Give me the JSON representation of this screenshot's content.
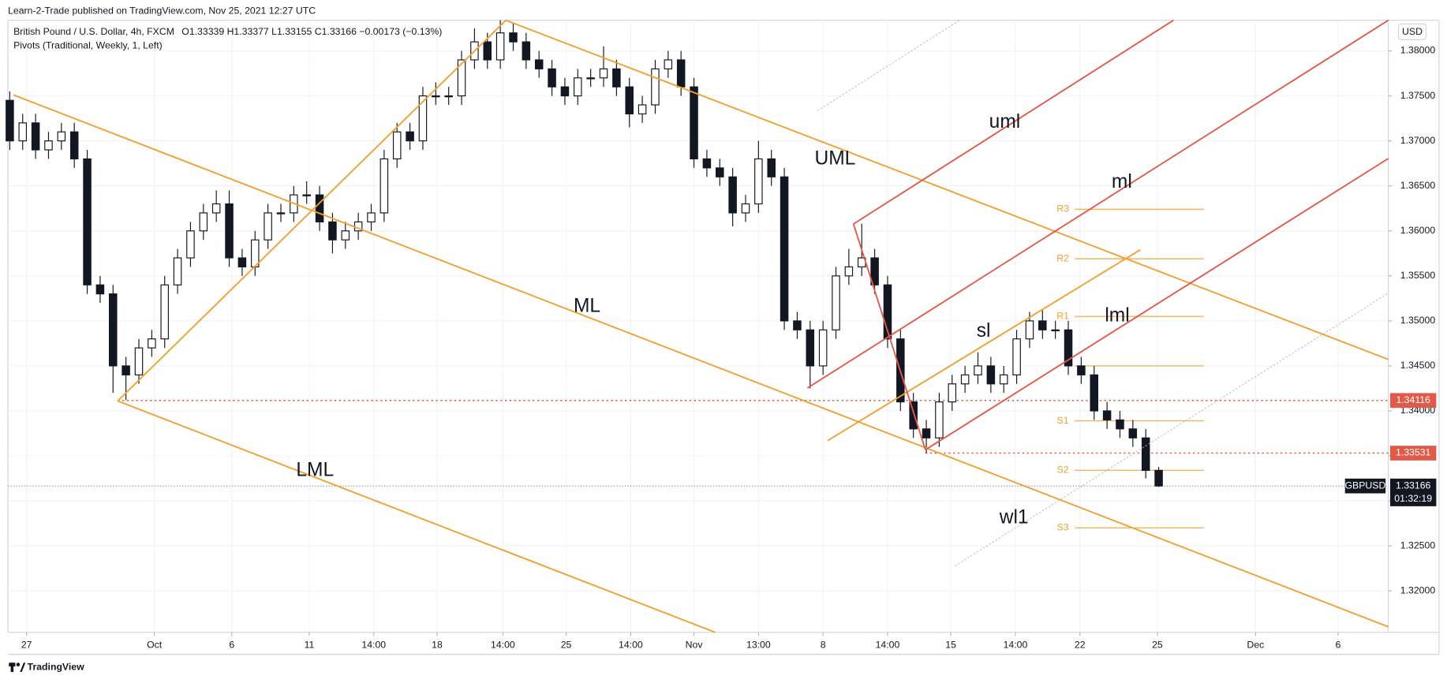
{
  "header": {
    "published": "Learn-2-Trade published on TradingView.com, Nov 25, 2021 12:27 UTC",
    "footer": "TradingView"
  },
  "chart_data": {
    "type": "candlestick",
    "title": "British Pound / U.S. Dollar, 4h, FXCM",
    "quote": "O1.33339  H1.33377  L1.33155  C1.33166  −0.00173 (−0.13%)",
    "indicator": "Pivots (Traditional, Weekly, 1, Left)",
    "currency": "USD",
    "symbol": "GBPUSD",
    "countdown": "01:32:19",
    "last_price": 1.33166,
    "price_lines": [
      1.34116,
      1.33531
    ],
    "annotations": [
      "UML",
      "ML",
      "LML",
      "uml",
      "ml",
      "lml",
      "sl",
      "wl1"
    ],
    "pivots": {
      "labels": [
        "R3",
        "R2",
        "R1",
        null,
        "S1",
        "S2",
        "S3"
      ],
      "values": [
        1.3624,
        1.3569,
        1.3505,
        1.345,
        1.3389,
        1.3334,
        1.327
      ]
    },
    "xlim": [
      -0.14,
      106.79
    ],
    "xticks": [
      {
        "value": 1.3,
        "label": "27"
      },
      {
        "value": 11.2,
        "label": "Oct"
      },
      {
        "value": 17.2,
        "label": "6"
      },
      {
        "value": 23.2,
        "label": "11"
      },
      {
        "value": 28.2,
        "label": "14:00"
      },
      {
        "value": 33.1,
        "label": "18"
      },
      {
        "value": 38.2,
        "label": "14:00"
      },
      {
        "value": 43.1,
        "label": "25"
      },
      {
        "value": 48.1,
        "label": "14:00"
      },
      {
        "value": 53,
        "label": "Nov"
      },
      {
        "value": 58,
        "label": "13:00"
      },
      {
        "value": 63,
        "label": "8"
      },
      {
        "value": 68,
        "label": "14:00"
      },
      {
        "value": 72.9,
        "label": "15"
      },
      {
        "value": 77.9,
        "label": "14:00"
      },
      {
        "value": 82.9,
        "label": "22"
      },
      {
        "value": 88.9,
        "label": "25"
      },
      {
        "value": 96.5,
        "label": "Dec"
      },
      {
        "value": 102.9,
        "label": "6"
      }
    ],
    "ylim": [
      1.3154,
      1.3834
    ],
    "yticks": [
      {
        "value": 1.32,
        "label": "1.32000"
      },
      {
        "value": 1.325,
        "label": "1.32500"
      },
      {
        "value": 1.33,
        "label": "1.33000"
      },
      {
        "value": 1.335,
        "label": "1.33500"
      },
      {
        "value": 1.34,
        "label": "1.34000"
      },
      {
        "value": 1.345,
        "label": "1.34500"
      },
      {
        "value": 1.35,
        "label": "1.35000"
      },
      {
        "value": 1.355,
        "label": "1.35500"
      },
      {
        "value": 1.36,
        "label": "1.36000"
      },
      {
        "value": 1.365,
        "label": "1.36500"
      },
      {
        "value": 1.37,
        "label": "1.37000"
      },
      {
        "value": 1.375,
        "label": "1.37500"
      },
      {
        "value": 1.38,
        "label": "1.38000"
      }
    ],
    "open": [
      1.3745,
      1.37,
      1.372,
      1.369,
      1.37,
      1.371,
      1.368,
      1.354,
      1.353,
      1.345,
      1.344,
      1.347,
      1.348,
      1.354,
      1.357,
      1.36,
      1.362,
      1.363,
      1.357,
      1.356,
      1.359,
      1.362,
      1.362,
      1.364,
      1.364,
      1.361,
      1.359,
      1.36,
      1.361,
      1.362,
      1.368,
      1.371,
      1.37,
      1.375,
      1.375,
      1.375,
      1.379,
      1.381,
      1.379,
      1.382,
      1.381,
      1.379,
      1.378,
      1.376,
      1.375,
      1.377,
      1.377,
      1.378,
      1.376,
      1.373,
      1.374,
      1.378,
      1.379,
      1.376,
      1.368,
      1.367,
      1.366,
      1.362,
      1.363,
      1.368,
      1.366,
      1.35,
      1.349,
      1.345,
      1.349,
      1.355,
      1.356,
      1.357,
      1.354,
      1.348,
      1.341,
      1.338,
      1.337,
      1.341,
      1.343,
      1.344,
      1.345,
      1.343,
      1.344,
      1.348,
      1.35,
      1.349,
      1.349,
      1.345,
      1.344,
      1.34,
      1.339,
      1.338,
      1.337,
      1.33339
    ],
    "high": [
      1.3755,
      1.373,
      1.373,
      1.371,
      1.372,
      1.372,
      1.369,
      1.355,
      1.354,
      1.346,
      1.348,
      1.349,
      1.355,
      1.358,
      1.361,
      1.363,
      1.3645,
      1.3645,
      1.358,
      1.36,
      1.363,
      1.363,
      1.365,
      1.3655,
      1.365,
      1.362,
      1.361,
      1.362,
      1.363,
      1.369,
      1.372,
      1.372,
      1.376,
      1.3765,
      1.376,
      1.38,
      1.3825,
      1.382,
      1.3834,
      1.383,
      1.382,
      1.38,
      1.379,
      1.377,
      1.378,
      1.378,
      1.3805,
      1.379,
      1.377,
      1.375,
      1.379,
      1.38,
      1.38,
      1.377,
      1.369,
      1.368,
      1.367,
      1.364,
      1.37,
      1.369,
      1.367,
      1.351,
      1.35,
      1.35,
      1.356,
      1.358,
      1.3608,
      1.358,
      1.355,
      1.349,
      1.342,
      1.339,
      1.342,
      1.344,
      1.345,
      1.3465,
      1.346,
      1.345,
      1.349,
      1.351,
      1.3512,
      1.35,
      1.35,
      1.346,
      1.345,
      1.341,
      1.34,
      1.339,
      1.338,
      1.33377
    ],
    "low": [
      1.369,
      1.369,
      1.368,
      1.368,
      1.369,
      1.367,
      1.353,
      1.352,
      1.342,
      1.3412,
      1.343,
      1.346,
      1.347,
      1.353,
      1.356,
      1.359,
      1.361,
      1.356,
      1.355,
      1.355,
      1.358,
      1.361,
      1.361,
      1.363,
      1.36,
      1.3575,
      1.358,
      1.359,
      1.36,
      1.361,
      1.367,
      1.369,
      1.369,
      1.374,
      1.374,
      1.374,
      1.378,
      1.378,
      1.378,
      1.38,
      1.378,
      1.377,
      1.375,
      1.374,
      1.374,
      1.376,
      1.376,
      1.375,
      1.3715,
      1.372,
      1.373,
      1.377,
      1.375,
      1.367,
      1.366,
      1.365,
      1.3605,
      1.361,
      1.362,
      1.365,
      1.349,
      1.348,
      1.3425,
      1.344,
      1.348,
      1.354,
      1.355,
      1.353,
      1.347,
      1.34,
      1.337,
      1.3353,
      1.336,
      1.34,
      1.342,
      1.343,
      1.342,
      1.342,
      1.343,
      1.347,
      1.348,
      1.348,
      1.344,
      1.343,
      1.339,
      1.338,
      1.337,
      1.336,
      1.3325,
      1.33155
    ],
    "close": [
      1.37,
      1.372,
      1.369,
      1.37,
      1.371,
      1.368,
      1.354,
      1.353,
      1.345,
      1.344,
      1.347,
      1.348,
      1.354,
      1.357,
      1.36,
      1.362,
      1.363,
      1.357,
      1.356,
      1.359,
      1.362,
      1.362,
      1.364,
      1.364,
      1.361,
      1.359,
      1.36,
      1.361,
      1.362,
      1.368,
      1.371,
      1.37,
      1.375,
      1.375,
      1.375,
      1.379,
      1.381,
      1.379,
      1.382,
      1.381,
      1.379,
      1.378,
      1.376,
      1.375,
      1.377,
      1.377,
      1.378,
      1.376,
      1.373,
      1.374,
      1.378,
      1.379,
      1.376,
      1.368,
      1.367,
      1.366,
      1.362,
      1.363,
      1.368,
      1.366,
      1.35,
      1.349,
      1.345,
      1.349,
      1.355,
      1.356,
      1.357,
      1.354,
      1.348,
      1.341,
      1.338,
      1.337,
      1.341,
      1.343,
      1.344,
      1.345,
      1.343,
      1.344,
      1.348,
      1.35,
      1.349,
      1.349,
      1.345,
      1.344,
      1.34,
      1.339,
      1.338,
      1.337,
      1.33339,
      1.33166
    ]
  }
}
